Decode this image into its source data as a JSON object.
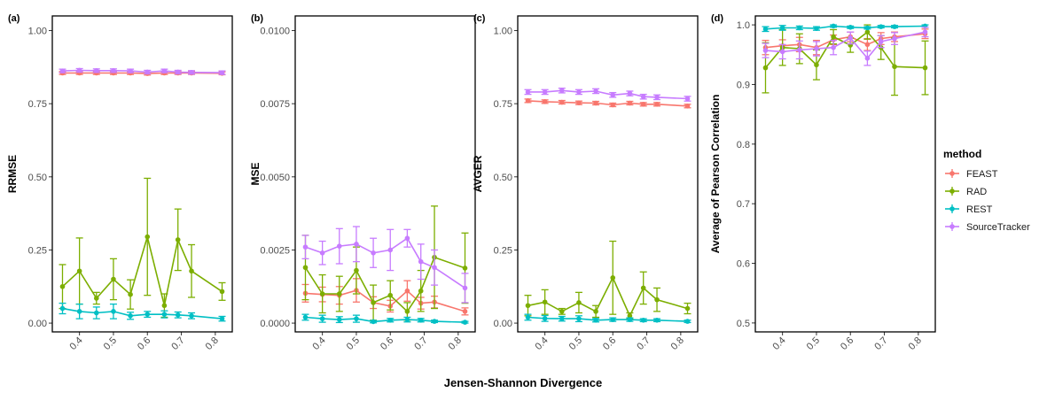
{
  "chart_data": [
    {
      "type": "line",
      "panel_label": "(a)",
      "ylabel": "RRMSE",
      "xlabel": "",
      "ylim": [
        -0.03,
        1.05
      ],
      "yticks": [
        "0.00",
        "0.25",
        "0.50",
        "0.75",
        "1.00"
      ],
      "ytick_values": [
        0,
        0.25,
        0.5,
        0.75,
        1.0
      ],
      "xlim": [
        0.32,
        0.85
      ],
      "xticks": [
        "0.4",
        "0.5",
        "0.6",
        "0.7",
        "0.8"
      ],
      "xtick_values": [
        0.4,
        0.5,
        0.6,
        0.7,
        0.8
      ],
      "grid": false,
      "series": [
        {
          "name": "FEAST",
          "x": [
            0.35,
            0.4,
            0.45,
            0.5,
            0.55,
            0.6,
            0.65,
            0.69,
            0.73,
            0.82
          ],
          "y": [
            0.855,
            0.855,
            0.855,
            0.855,
            0.855,
            0.853,
            0.855,
            0.855,
            0.855,
            0.854
          ],
          "err": [
            0.005,
            0.005,
            0.005,
            0.005,
            0.005,
            0.005,
            0.005,
            0.005,
            0.005,
            0.005
          ]
        },
        {
          "name": "RAD",
          "x": [
            0.35,
            0.4,
            0.45,
            0.5,
            0.55,
            0.6,
            0.65,
            0.69,
            0.73,
            0.82
          ],
          "y": [
            0.125,
            0.178,
            0.085,
            0.15,
            0.098,
            0.295,
            0.06,
            0.285,
            0.178,
            0.108
          ],
          "err": [
            0.075,
            0.113,
            0.02,
            0.07,
            0.05,
            0.2,
            0.04,
            0.105,
            0.09,
            0.03
          ]
        },
        {
          "name": "REST",
          "x": [
            0.35,
            0.4,
            0.45,
            0.5,
            0.55,
            0.6,
            0.65,
            0.69,
            0.73,
            0.82
          ],
          "y": [
            0.05,
            0.04,
            0.035,
            0.04,
            0.025,
            0.03,
            0.03,
            0.028,
            0.025,
            0.015
          ],
          "err": [
            0.018,
            0.025,
            0.02,
            0.025,
            0.012,
            0.01,
            0.012,
            0.01,
            0.01,
            0.008
          ]
        },
        {
          "name": "SourceTracker",
          "x": [
            0.35,
            0.4,
            0.45,
            0.5,
            0.55,
            0.6,
            0.65,
            0.69,
            0.73,
            0.82
          ],
          "y": [
            0.862,
            0.864,
            0.863,
            0.863,
            0.862,
            0.858,
            0.862,
            0.858,
            0.857,
            0.856
          ],
          "err": [
            0.006,
            0.006,
            0.006,
            0.006,
            0.006,
            0.006,
            0.006,
            0.006,
            0.006,
            0.006
          ]
        }
      ]
    },
    {
      "type": "line",
      "panel_label": "(b)",
      "ylabel": "MSE",
      "xlabel": "",
      "ylim": [
        -0.0003,
        0.0105
      ],
      "yticks": [
        "0.0000",
        "0.0025",
        "0.0050",
        "0.0075",
        "0.0100"
      ],
      "ytick_values": [
        0,
        0.0025,
        0.005,
        0.0075,
        0.01
      ],
      "xlim": [
        0.32,
        0.85
      ],
      "xticks": [
        "0.4",
        "0.5",
        "0.6",
        "0.7",
        "0.8"
      ],
      "xtick_values": [
        0.4,
        0.5,
        0.6,
        0.7,
        0.8
      ],
      "grid": false,
      "series": [
        {
          "name": "FEAST",
          "x": [
            0.35,
            0.4,
            0.45,
            0.5,
            0.55,
            0.6,
            0.65,
            0.69,
            0.73,
            0.82
          ],
          "y": [
            0.00102,
            0.00098,
            0.00095,
            0.00112,
            0.0007,
            0.00058,
            0.0011,
            0.00068,
            0.00072,
            0.0004
          ],
          "err": [
            0.0003,
            0.00025,
            0.0003,
            0.0004,
            0.0002,
            0.0002,
            0.00035,
            0.0002,
            0.0002,
            0.00012
          ]
        },
        {
          "name": "RAD",
          "x": [
            0.35,
            0.4,
            0.45,
            0.5,
            0.55,
            0.6,
            0.65,
            0.69,
            0.73,
            0.82
          ],
          "y": [
            0.0019,
            0.001,
            0.001,
            0.0018,
            0.0007,
            0.00095,
            0.0004,
            0.0011,
            0.00225,
            0.00188
          ],
          "err": [
            0.0011,
            0.00065,
            0.0006,
            0.0008,
            0.0006,
            0.0005,
            0.0003,
            0.0007,
            0.00175,
            0.0012
          ]
        },
        {
          "name": "REST",
          "x": [
            0.35,
            0.4,
            0.45,
            0.5,
            0.55,
            0.6,
            0.65,
            0.69,
            0.73,
            0.82
          ],
          "y": [
            0.0002,
            0.00015,
            0.00012,
            0.00015,
            5e-05,
            0.0001,
            0.00012,
            0.0001,
            6e-05,
            3e-05
          ],
          "err": [
            0.0001,
            0.00012,
            0.0001,
            0.00012,
            4e-05,
            6e-05,
            8e-05,
            6e-05,
            4e-05,
            3e-05
          ]
        },
        {
          "name": "SourceTracker",
          "x": [
            0.35,
            0.4,
            0.45,
            0.5,
            0.55,
            0.6,
            0.65,
            0.69,
            0.73,
            0.82
          ],
          "y": [
            0.0026,
            0.0024,
            0.00263,
            0.0027,
            0.0024,
            0.0025,
            0.0029,
            0.0021,
            0.0019,
            0.0012
          ],
          "err": [
            0.0004,
            0.0004,
            0.0006,
            0.0006,
            0.0005,
            0.0007,
            0.0003,
            0.0006,
            0.0006,
            0.0005
          ]
        }
      ]
    },
    {
      "type": "line",
      "panel_label": "(c)",
      "ylabel": "AVGER",
      "xlabel": "",
      "ylim": [
        -0.03,
        1.05
      ],
      "yticks": [
        "0.00",
        "0.25",
        "0.50",
        "0.75",
        "1.00"
      ],
      "ytick_values": [
        0,
        0.25,
        0.5,
        0.75,
        1.0
      ],
      "xlim": [
        0.32,
        0.85
      ],
      "xticks": [
        "0.4",
        "0.5",
        "0.6",
        "0.7",
        "0.8"
      ],
      "xtick_values": [
        0.4,
        0.5,
        0.6,
        0.7,
        0.8
      ],
      "grid": false,
      "series": [
        {
          "name": "FEAST",
          "x": [
            0.35,
            0.4,
            0.45,
            0.5,
            0.55,
            0.6,
            0.65,
            0.69,
            0.73,
            0.82
          ],
          "y": [
            0.76,
            0.757,
            0.755,
            0.753,
            0.752,
            0.746,
            0.752,
            0.748,
            0.748,
            0.742
          ],
          "err": [
            0.006,
            0.006,
            0.006,
            0.006,
            0.006,
            0.006,
            0.006,
            0.006,
            0.006,
            0.006
          ]
        },
        {
          "name": "RAD",
          "x": [
            0.35,
            0.4,
            0.45,
            0.5,
            0.55,
            0.6,
            0.65,
            0.69,
            0.73,
            0.82
          ],
          "y": [
            0.06,
            0.072,
            0.04,
            0.07,
            0.04,
            0.155,
            0.025,
            0.12,
            0.08,
            0.05
          ],
          "err": [
            0.035,
            0.042,
            0.01,
            0.035,
            0.02,
            0.125,
            0.01,
            0.055,
            0.04,
            0.018
          ]
        },
        {
          "name": "REST",
          "x": [
            0.35,
            0.4,
            0.45,
            0.5,
            0.55,
            0.6,
            0.65,
            0.69,
            0.73,
            0.82
          ],
          "y": [
            0.02,
            0.016,
            0.015,
            0.015,
            0.01,
            0.012,
            0.012,
            0.01,
            0.01,
            0.006
          ],
          "err": [
            0.01,
            0.01,
            0.008,
            0.01,
            0.006,
            0.006,
            0.006,
            0.005,
            0.005,
            0.004
          ]
        },
        {
          "name": "SourceTracker",
          "x": [
            0.35,
            0.4,
            0.45,
            0.5,
            0.55,
            0.6,
            0.65,
            0.69,
            0.73,
            0.82
          ],
          "y": [
            0.79,
            0.79,
            0.795,
            0.79,
            0.793,
            0.78,
            0.785,
            0.774,
            0.772,
            0.767
          ],
          "err": [
            0.008,
            0.008,
            0.008,
            0.008,
            0.008,
            0.008,
            0.008,
            0.008,
            0.008,
            0.008
          ]
        }
      ]
    },
    {
      "type": "line",
      "panel_label": "(d)",
      "ylabel": "Average of Pearson Correlation",
      "xlabel": "",
      "ylim": [
        0.485,
        1.015
      ],
      "yticks": [
        "0.5",
        "0.6",
        "0.7",
        "0.8",
        "0.9",
        "1.0"
      ],
      "ytick_values": [
        0.5,
        0.6,
        0.7,
        0.8,
        0.9,
        1.0
      ],
      "xlim": [
        0.32,
        0.85
      ],
      "xticks": [
        "0.4",
        "0.5",
        "0.6",
        "0.7",
        "0.8"
      ],
      "xtick_values": [
        0.4,
        0.5,
        0.6,
        0.7,
        0.8
      ],
      "grid": false,
      "series": [
        {
          "name": "FEAST",
          "x": [
            0.35,
            0.4,
            0.45,
            0.5,
            0.55,
            0.6,
            0.65,
            0.69,
            0.73,
            0.82
          ],
          "y": [
            0.962,
            0.965,
            0.967,
            0.962,
            0.975,
            0.98,
            0.967,
            0.977,
            0.98,
            0.985
          ],
          "err": [
            0.012,
            0.01,
            0.012,
            0.012,
            0.008,
            0.008,
            0.01,
            0.01,
            0.008,
            0.008
          ]
        },
        {
          "name": "RAD",
          "x": [
            0.35,
            0.4,
            0.45,
            0.5,
            0.55,
            0.6,
            0.65,
            0.69,
            0.73,
            0.82
          ],
          "y": [
            0.928,
            0.962,
            0.96,
            0.933,
            0.98,
            0.966,
            0.988,
            0.962,
            0.93,
            0.928
          ],
          "err": [
            0.042,
            0.03,
            0.025,
            0.025,
            0.012,
            0.012,
            0.012,
            0.02,
            0.048,
            0.045
          ]
        },
        {
          "name": "REST",
          "x": [
            0.35,
            0.4,
            0.45,
            0.5,
            0.55,
            0.6,
            0.65,
            0.69,
            0.73,
            0.82
          ],
          "y": [
            0.993,
            0.995,
            0.995,
            0.994,
            0.998,
            0.996,
            0.995,
            0.997,
            0.997,
            0.998
          ],
          "err": [
            0.004,
            0.004,
            0.003,
            0.003,
            0.002,
            0.002,
            0.002,
            0.002,
            0.002,
            0.002
          ]
        },
        {
          "name": "SourceTracker",
          "x": [
            0.35,
            0.4,
            0.45,
            0.5,
            0.55,
            0.6,
            0.65,
            0.69,
            0.73,
            0.82
          ],
          "y": [
            0.957,
            0.955,
            0.958,
            0.96,
            0.962,
            0.978,
            0.944,
            0.972,
            0.977,
            0.988
          ],
          "err": [
            0.012,
            0.012,
            0.015,
            0.012,
            0.012,
            0.01,
            0.012,
            0.01,
            0.01,
            0.008
          ]
        }
      ]
    }
  ],
  "shared": {
    "xlabel": "Jensen-Shannon Divergence",
    "legend_title": "method",
    "legend_position": "right",
    "methods": [
      {
        "name": "FEAST",
        "color": "#f8766d"
      },
      {
        "name": "RAD",
        "color": "#7cae00"
      },
      {
        "name": "REST",
        "color": "#00bfc4"
      },
      {
        "name": "SourceTracker",
        "color": "#c77cff"
      }
    ]
  }
}
